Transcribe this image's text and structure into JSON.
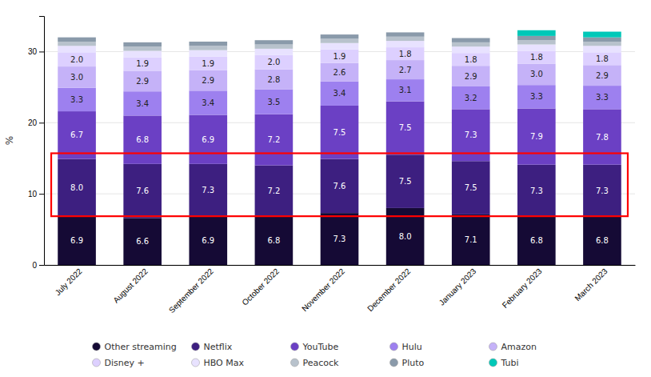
{
  "chart_data": {
    "type": "bar",
    "stacked": true,
    "categories": [
      "July 2022",
      "August 2022",
      "September 2022",
      "October 2022",
      "November 2022",
      "December 2022",
      "January 2023",
      "February 2023",
      "March 2023"
    ],
    "series": [
      {
        "name": "Other streaming",
        "color": "#150a35",
        "data_labels": true,
        "values": [
          6.9,
          6.6,
          6.9,
          6.8,
          7.3,
          8.0,
          7.1,
          6.8,
          6.8
        ],
        "value_labels": [
          "6.9",
          "6.6",
          "6.9",
          "6.8",
          "7.3",
          "8.0",
          "7.1",
          "6.8",
          "6.8"
        ]
      },
      {
        "name": "Netflix",
        "color": "#3d1f80",
        "data_labels": true,
        "values": [
          8.0,
          7.6,
          7.3,
          7.2,
          7.6,
          7.5,
          7.5,
          7.3,
          7.3
        ],
        "value_labels": [
          "8.0",
          "7.6",
          "7.3",
          "7.2",
          "7.6",
          "7.5",
          "7.5",
          "7.3",
          "7.3"
        ]
      },
      {
        "name": "YouTube",
        "color": "#6b40c4",
        "data_labels": true,
        "values": [
          6.7,
          6.8,
          6.9,
          7.2,
          7.5,
          7.5,
          7.3,
          7.9,
          7.8
        ],
        "value_labels": [
          "6.7",
          "6.8",
          "6.9",
          "7.2",
          "7.5",
          "7.5",
          "7.3",
          "7.9",
          "7.8"
        ]
      },
      {
        "name": "Hulu",
        "color": "#9d80ef",
        "data_labels": true,
        "values": [
          3.3,
          3.4,
          3.4,
          3.5,
          3.4,
          3.1,
          3.2,
          3.3,
          3.3
        ],
        "value_labels": [
          "3.3",
          "3.4",
          "3.4",
          "3.5",
          "3.4",
          "3.1",
          "3.2",
          "3.3",
          "3.3"
        ]
      },
      {
        "name": "Amazon",
        "color": "#c5b2f8",
        "data_labels": true,
        "values": [
          3.0,
          2.9,
          2.9,
          2.8,
          2.6,
          2.7,
          2.9,
          3.0,
          2.9
        ],
        "value_labels": [
          "3.0",
          "2.9",
          "2.9",
          "2.8",
          "2.6",
          "2.7",
          "2.9",
          "3.0",
          "2.9"
        ]
      },
      {
        "name": "Disney +",
        "color": "#ddd0ff",
        "data_labels": true,
        "values": [
          2.0,
          1.9,
          1.9,
          2.0,
          1.9,
          1.8,
          1.8,
          1.8,
          1.8
        ],
        "value_labels": [
          "2.0",
          "1.9",
          "1.9",
          "2.0",
          "1.9",
          "1.8",
          "1.8",
          "1.8",
          "1.8"
        ]
      },
      {
        "name": "HBO Max",
        "color": "#e8e2ff",
        "data_labels": false,
        "values": [
          0.9,
          0.9,
          0.9,
          0.9,
          0.9,
          0.9,
          0.9,
          0.9,
          0.9
        ]
      },
      {
        "name": "Peacock",
        "color": "#b8c2cc",
        "data_labels": false,
        "values": [
          0.6,
          0.6,
          0.6,
          0.6,
          0.6,
          0.6,
          0.6,
          0.6,
          0.6
        ]
      },
      {
        "name": "Pluto",
        "color": "#8a9aaa",
        "data_labels": false,
        "values": [
          0.6,
          0.6,
          0.6,
          0.6,
          0.6,
          0.6,
          0.6,
          0.6,
          0.6
        ]
      },
      {
        "name": "Tubi",
        "color": "#00c8b8",
        "data_labels": false,
        "values": [
          0.0,
          0.0,
          0.0,
          0.0,
          0.0,
          0.0,
          0.0,
          0.8,
          0.8
        ]
      }
    ],
    "ylabel": "%",
    "ylim": [
      0,
      35
    ],
    "yticks": [
      0,
      10,
      20,
      30
    ],
    "grid": true,
    "legend": "bottom",
    "highlight": {
      "y": [
        6.85,
        15.7
      ],
      "color": "red"
    }
  }
}
